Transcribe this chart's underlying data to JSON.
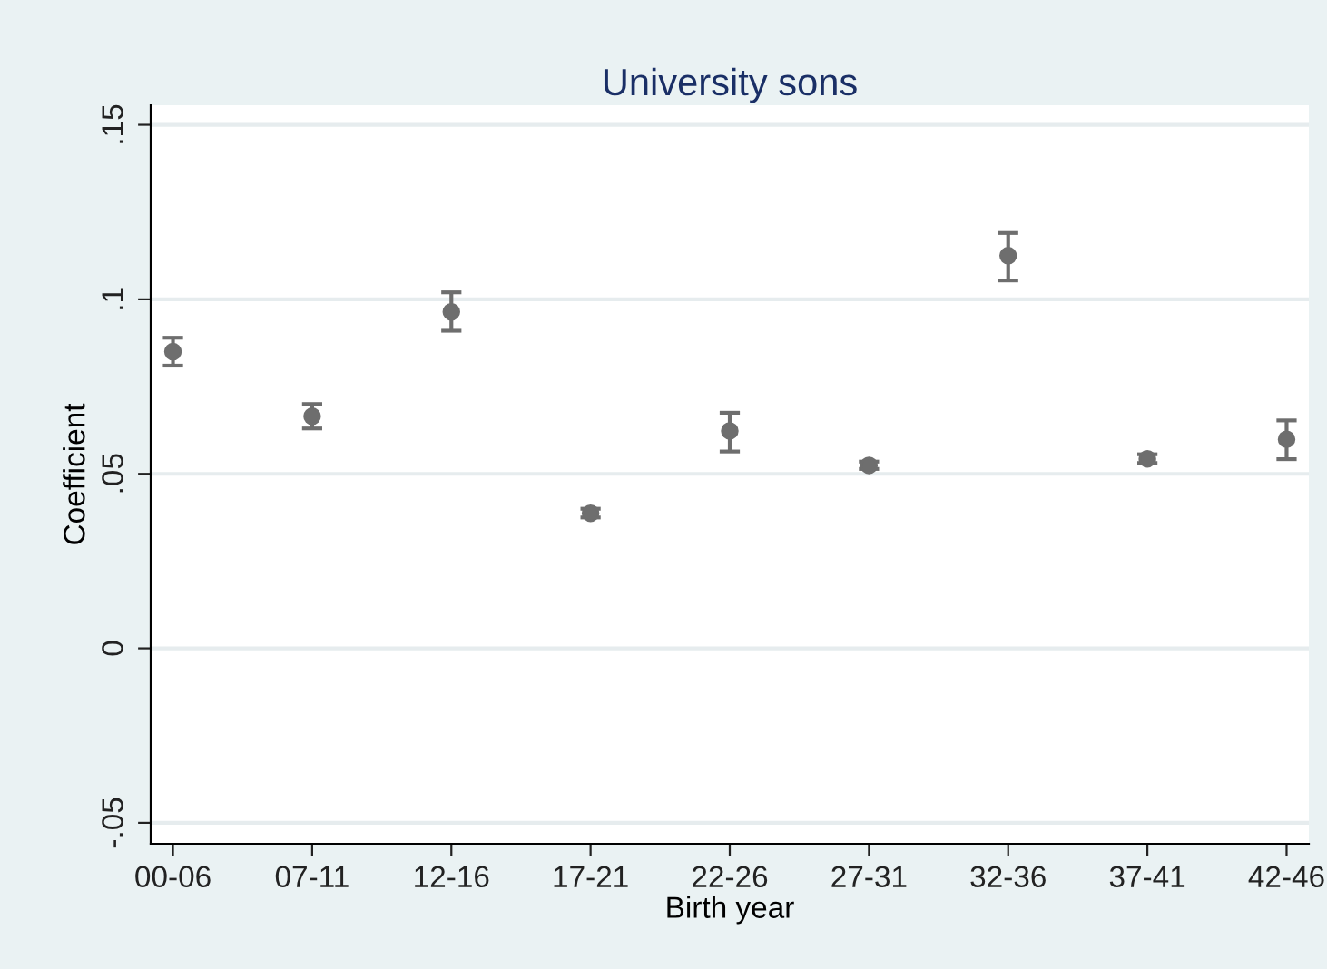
{
  "chart_data": {
    "type": "scatter",
    "title": "University sons",
    "xlabel": "Birth year",
    "ylabel": "Coefficient",
    "categories": [
      "00-06",
      "07-11",
      "12-16",
      "17-21",
      "22-26",
      "27-31",
      "32-36",
      "37-41",
      "42-46"
    ],
    "values": [
      0.085,
      0.0665,
      0.0964,
      0.0387,
      0.0623,
      0.0524,
      0.1125,
      0.0543,
      0.0599
    ],
    "errors": [
      [
        0.081,
        0.089
      ],
      [
        0.063,
        0.07
      ],
      [
        0.091,
        0.102
      ],
      [
        0.0375,
        0.04
      ],
      [
        0.0564,
        0.0675
      ],
      [
        0.0514,
        0.0535
      ],
      [
        0.1054,
        0.119
      ],
      [
        0.0531,
        0.0556
      ],
      [
        0.0542,
        0.0653
      ]
    ],
    "color": "#6e6e6e",
    "marker": "circle",
    "grid": "y",
    "ylim": [
      -0.056,
      0.1556
    ],
    "yticks": [
      {
        "value": -0.05,
        "label": "-.05"
      },
      {
        "value": 0,
        "label": "0"
      },
      {
        "value": 0.05,
        "label": ".05"
      },
      {
        "value": 0.1,
        "label": ".1"
      },
      {
        "value": 0.15,
        "label": ".15"
      }
    ]
  }
}
